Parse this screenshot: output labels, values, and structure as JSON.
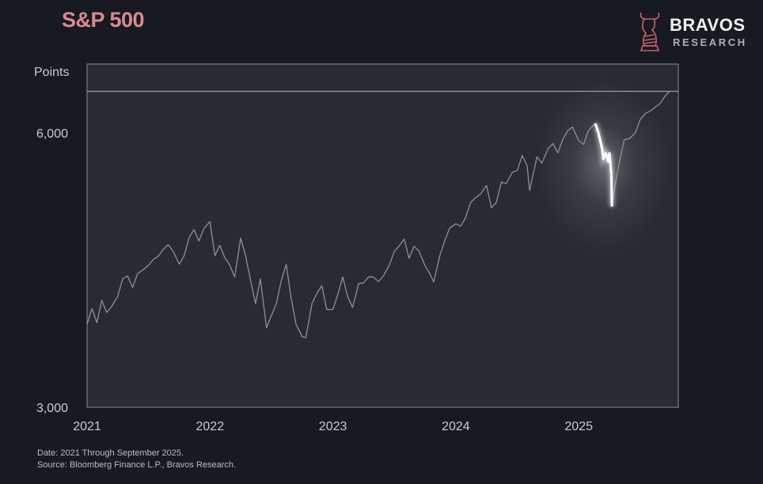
{
  "title": "S&P 500",
  "logo": {
    "name": "BRAVOS",
    "sub": "RESEARCH"
  },
  "footer": {
    "date": "Date: 2021 Through September 2025.",
    "source": "Source: Bloomberg Finance L.P., Bravos Research."
  },
  "colors": {
    "line": "#8d9096",
    "highlight": "#ffffff",
    "title": "#d98a92",
    "plot_bg": "#272b33"
  },
  "chart_data": {
    "type": "line",
    "title": "S&P 500",
    "ylabel": "Points",
    "xlabel": "",
    "yscale": "log",
    "ylim": [
      3000,
      7140
    ],
    "xlim": [
      2021.0,
      2025.81
    ],
    "yticks": [
      {
        "value": 3000,
        "label": "3,000"
      },
      {
        "value": 6000,
        "label": "6,000"
      }
    ],
    "xticks": [
      {
        "value": 2021,
        "label": "2021"
      },
      {
        "value": 2022,
        "label": "2022"
      },
      {
        "value": 2023,
        "label": "2023"
      },
      {
        "value": 2024,
        "label": "2024"
      },
      {
        "value": 2025,
        "label": "2025"
      }
    ],
    "reference_line": 6664,
    "highlight_range": [
      2025.135,
      2025.27
    ],
    "grid": false,
    "series": [
      {
        "name": "S&P 500",
        "points": [
          [
            2021.0,
            3700
          ],
          [
            2021.04,
            3850
          ],
          [
            2021.08,
            3714
          ],
          [
            2021.12,
            3930
          ],
          [
            2021.16,
            3811
          ],
          [
            2021.2,
            3870
          ],
          [
            2021.25,
            3973
          ],
          [
            2021.29,
            4150
          ],
          [
            2021.33,
            4181
          ],
          [
            2021.37,
            4060
          ],
          [
            2021.41,
            4204
          ],
          [
            2021.46,
            4250
          ],
          [
            2021.5,
            4297
          ],
          [
            2021.54,
            4360
          ],
          [
            2021.58,
            4395
          ],
          [
            2021.62,
            4470
          ],
          [
            2021.66,
            4523
          ],
          [
            2021.7,
            4450
          ],
          [
            2021.75,
            4308
          ],
          [
            2021.79,
            4400
          ],
          [
            2021.83,
            4605
          ],
          [
            2021.87,
            4700
          ],
          [
            2021.91,
            4567
          ],
          [
            2021.95,
            4710
          ],
          [
            2022.0,
            4796
          ],
          [
            2022.04,
            4400
          ],
          [
            2022.08,
            4516
          ],
          [
            2022.12,
            4380
          ],
          [
            2022.16,
            4300
          ],
          [
            2022.2,
            4170
          ],
          [
            2022.25,
            4600
          ],
          [
            2022.29,
            4400
          ],
          [
            2022.33,
            4132
          ],
          [
            2022.37,
            3900
          ],
          [
            2022.41,
            4150
          ],
          [
            2022.46,
            3667
          ],
          [
            2022.5,
            3785
          ],
          [
            2022.54,
            3900
          ],
          [
            2022.58,
            4130
          ],
          [
            2022.62,
            4305
          ],
          [
            2022.66,
            3955
          ],
          [
            2022.7,
            3700
          ],
          [
            2022.75,
            3586
          ],
          [
            2022.78,
            3577
          ],
          [
            2022.83,
            3900
          ],
          [
            2022.87,
            4000
          ],
          [
            2022.91,
            4080
          ],
          [
            2022.95,
            3840
          ],
          [
            2023.0,
            3840
          ],
          [
            2023.04,
            3990
          ],
          [
            2023.08,
            4170
          ],
          [
            2023.12,
            3970
          ],
          [
            2023.16,
            3860
          ],
          [
            2023.21,
            4100
          ],
          [
            2023.25,
            4109
          ],
          [
            2023.29,
            4170
          ],
          [
            2023.33,
            4169
          ],
          [
            2023.37,
            4120
          ],
          [
            2023.41,
            4180
          ],
          [
            2023.46,
            4300
          ],
          [
            2023.5,
            4450
          ],
          [
            2023.54,
            4510
          ],
          [
            2023.58,
            4589
          ],
          [
            2023.62,
            4370
          ],
          [
            2023.66,
            4508
          ],
          [
            2023.7,
            4450
          ],
          [
            2023.75,
            4288
          ],
          [
            2023.79,
            4200
          ],
          [
            2023.82,
            4117
          ],
          [
            2023.87,
            4400
          ],
          [
            2023.91,
            4568
          ],
          [
            2023.95,
            4720
          ],
          [
            2024.0,
            4770
          ],
          [
            2024.04,
            4740
          ],
          [
            2024.08,
            4846
          ],
          [
            2024.12,
            5030
          ],
          [
            2024.16,
            5096
          ],
          [
            2024.2,
            5140
          ],
          [
            2024.25,
            5254
          ],
          [
            2024.29,
            4967
          ],
          [
            2024.33,
            5036
          ],
          [
            2024.37,
            5300
          ],
          [
            2024.41,
            5278
          ],
          [
            2024.46,
            5430
          ],
          [
            2024.5,
            5460
          ],
          [
            2024.54,
            5667
          ],
          [
            2024.58,
            5522
          ],
          [
            2024.6,
            5186
          ],
          [
            2024.66,
            5648
          ],
          [
            2024.7,
            5560
          ],
          [
            2024.75,
            5762
          ],
          [
            2024.79,
            5840
          ],
          [
            2024.83,
            5705
          ],
          [
            2024.87,
            5900
          ],
          [
            2024.91,
            6032
          ],
          [
            2024.95,
            6090
          ],
          [
            2025.0,
            5882
          ],
          [
            2025.04,
            5830
          ],
          [
            2025.08,
            6040
          ],
          [
            2025.135,
            6144
          ],
          [
            2025.16,
            6000
          ],
          [
            2025.19,
            5770
          ],
          [
            2025.2,
            5620
          ],
          [
            2025.22,
            5700
          ],
          [
            2025.24,
            5580
          ],
          [
            2025.25,
            5700
          ],
          [
            2025.265,
            5400
          ],
          [
            2025.27,
            4982
          ],
          [
            2025.3,
            5300
          ],
          [
            2025.33,
            5569
          ],
          [
            2025.37,
            5900
          ],
          [
            2025.41,
            5912
          ],
          [
            2025.46,
            6000
          ],
          [
            2025.5,
            6205
          ],
          [
            2025.54,
            6300
          ],
          [
            2025.58,
            6339
          ],
          [
            2025.62,
            6400
          ],
          [
            2025.66,
            6460
          ],
          [
            2025.7,
            6580
          ],
          [
            2025.74,
            6664
          ]
        ]
      }
    ]
  }
}
